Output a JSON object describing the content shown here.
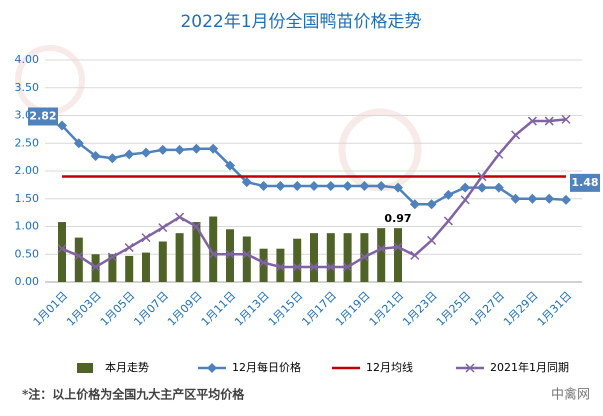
{
  "chart_data": {
    "type": "combo",
    "title": "2022年1月份全国鸭苗价格走势",
    "categories": [
      "1月01日",
      null,
      "1月03日",
      null,
      "1月05日",
      null,
      "1月07日",
      null,
      "1月09日",
      null,
      "1月11日",
      null,
      "1月13日",
      null,
      "1月15日",
      null,
      "1月17日",
      null,
      "1月19日",
      null,
      "1月21日",
      null,
      "1月23日",
      null,
      "1月25日",
      null,
      "1月27日",
      null,
      "1月29日",
      null,
      "1月31日"
    ],
    "ylim": [
      0,
      4
    ],
    "yticks": [
      {
        "value": 0,
        "label": "0.00"
      },
      {
        "value": 0.5,
        "label": "0.50"
      },
      {
        "value": 1,
        "label": "1.00"
      },
      {
        "value": 1.5,
        "label": "1.50"
      },
      {
        "value": 2,
        "label": "2.00"
      },
      {
        "value": 2.5,
        "label": "2.50"
      },
      {
        "value": 3,
        "label": "3.00"
      },
      {
        "value": 3.5,
        "label": "3.50"
      },
      {
        "value": 4,
        "label": "4.00"
      }
    ],
    "grid": true,
    "legend": "bottom",
    "series": [
      {
        "name": "本月走势",
        "type": "bar",
        "color": "#4f6228",
        "values": [
          1.08,
          0.8,
          0.5,
          0.5,
          0.47,
          0.53,
          0.73,
          0.88,
          1.08,
          1.18,
          0.95,
          0.82,
          0.6,
          0.6,
          0.78,
          0.88,
          0.88,
          0.88,
          0.88,
          0.97,
          0.97,
          null,
          null,
          null,
          null,
          null,
          null,
          null,
          null,
          null,
          null
        ],
        "value_labels": [
          null,
          null,
          null,
          null,
          null,
          null,
          null,
          null,
          null,
          null,
          null,
          null,
          null,
          null,
          null,
          null,
          null,
          null,
          null,
          null,
          "0.97",
          null,
          null,
          null,
          null,
          null,
          null,
          null,
          null,
          null,
          null
        ]
      },
      {
        "name": "12月每日价格",
        "type": "line",
        "marker": "diamond",
        "color": "#4f81bd",
        "values": [
          2.82,
          2.5,
          2.27,
          2.23,
          2.3,
          2.33,
          2.38,
          2.38,
          2.4,
          2.4,
          2.1,
          1.8,
          1.73,
          1.73,
          1.73,
          1.73,
          1.73,
          1.73,
          1.73,
          1.73,
          1.7,
          1.4,
          1.4,
          1.57,
          1.7,
          1.7,
          1.7,
          1.5,
          1.5,
          1.5,
          1.48
        ],
        "value_labels": [
          "2.82",
          null,
          null,
          null,
          null,
          null,
          null,
          null,
          null,
          null,
          null,
          null,
          null,
          null,
          null,
          null,
          null,
          null,
          null,
          null,
          null,
          null,
          null,
          null,
          null,
          null,
          null,
          null,
          null,
          null,
          "1.48"
        ]
      },
      {
        "name": "12月均线",
        "type": "line",
        "marker": "none",
        "color": "#c00000",
        "values": [
          1.9,
          1.9,
          1.9,
          1.9,
          1.9,
          1.9,
          1.9,
          1.9,
          1.9,
          1.9,
          1.9,
          1.9,
          1.9,
          1.9,
          1.9,
          1.9,
          1.9,
          1.9,
          1.9,
          1.9,
          1.9,
          1.9,
          1.9,
          1.9,
          1.9,
          1.9,
          1.9,
          1.9,
          1.9,
          1.9,
          1.9
        ]
      },
      {
        "name": "2021年1月同期",
        "type": "line",
        "marker": "x",
        "color": "#8064a2",
        "values": [
          0.6,
          0.47,
          0.27,
          0.45,
          0.62,
          0.8,
          0.98,
          1.17,
          1.0,
          0.5,
          0.5,
          0.5,
          0.35,
          0.27,
          0.27,
          0.27,
          0.27,
          0.27,
          0.45,
          0.6,
          0.63,
          0.48,
          0.75,
          1.1,
          1.48,
          1.9,
          2.3,
          2.65,
          2.9,
          2.9,
          2.93
        ]
      }
    ],
    "footnote": "*注：以上价格为全国九大主产区平均价格",
    "watermark": "中禽网"
  }
}
